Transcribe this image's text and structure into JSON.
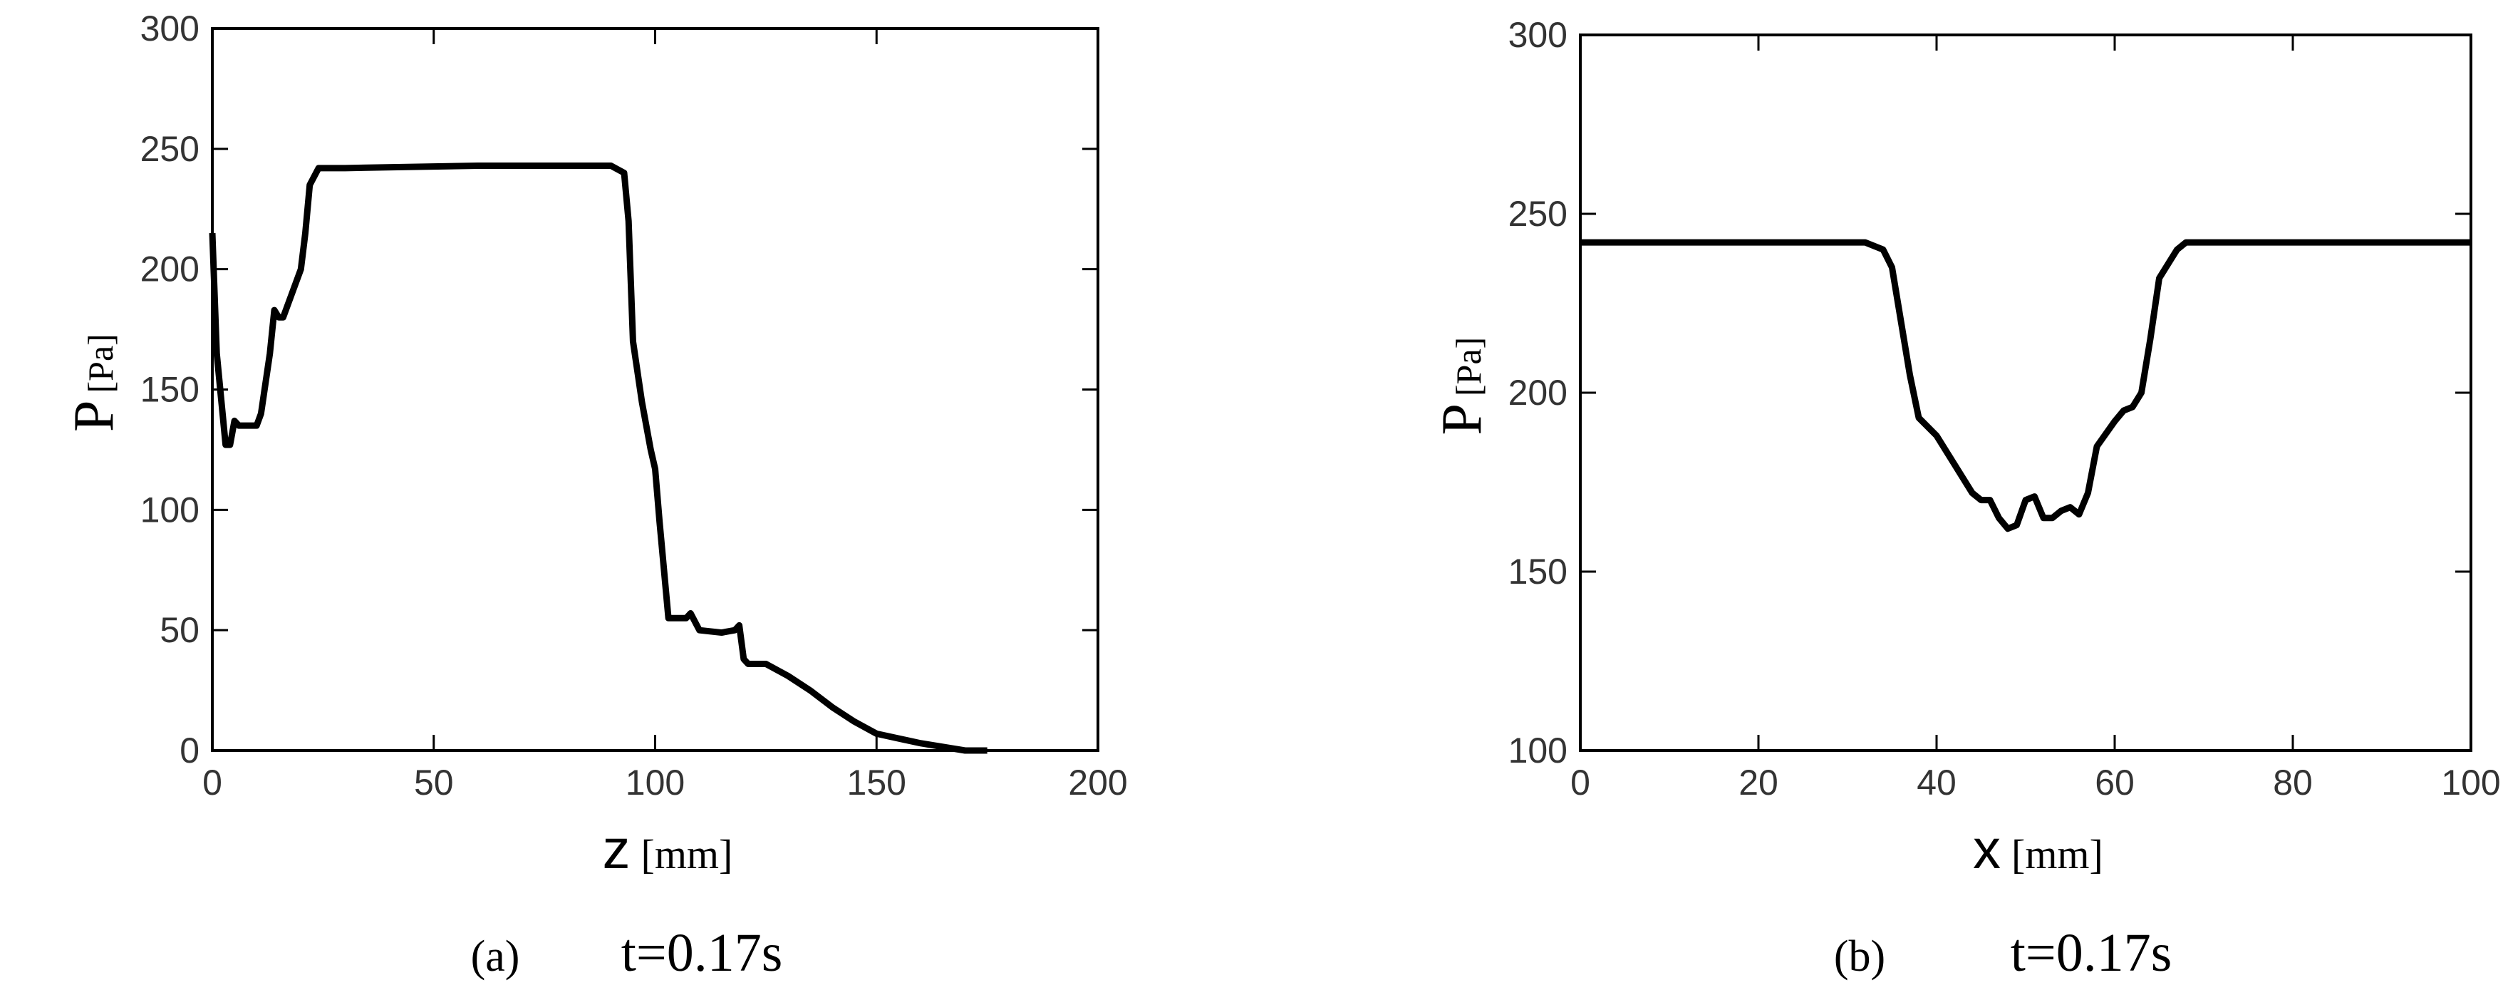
{
  "chart_data": [
    {
      "type": "line",
      "ylabel": "P",
      "ylabel_unit": "[Pa]",
      "xlabel": "z",
      "xlabel_unit": "[mm]",
      "caption_label": "(a)",
      "caption": "t=0.17s",
      "xlim": [
        0,
        200
      ],
      "xticks": [
        0,
        50,
        100,
        150,
        200
      ],
      "ylim": [
        0,
        300
      ],
      "yticks": [
        0,
        50,
        100,
        150,
        200,
        250,
        300
      ],
      "series": [
        {
          "color": "#000000",
          "x": [
            0,
            1,
            3,
            4,
            5,
            6,
            10,
            11,
            13,
            14,
            15,
            16,
            18,
            20,
            21,
            22,
            24,
            30,
            60,
            90,
            93,
            94,
            95,
            97,
            99,
            100,
            101,
            102,
            103,
            107,
            108,
            110,
            115,
            118,
            119,
            120,
            121,
            125,
            130,
            135,
            140,
            145,
            150,
            160,
            170,
            175
          ],
          "values": [
            215,
            165,
            127,
            127,
            137,
            135,
            135,
            140,
            165,
            183,
            180,
            180,
            190,
            200,
            215,
            235,
            242,
            242,
            243,
            243,
            240,
            220,
            170,
            145,
            125,
            117,
            95,
            75,
            55,
            55,
            57,
            50,
            49,
            50,
            52,
            38,
            36,
            36,
            31,
            25,
            18,
            12,
            7,
            3,
            0,
            0
          ]
        }
      ]
    },
    {
      "type": "line",
      "ylabel": "P",
      "ylabel_unit": "[Pa]",
      "xlabel": "x",
      "xlabel_unit": "[mm]",
      "caption_label": "(b)",
      "caption": "t=0.17s",
      "xlim": [
        0,
        100
      ],
      "xticks": [
        0,
        20,
        40,
        60,
        80,
        100
      ],
      "ylim": [
        100,
        300
      ],
      "yticks": [
        100,
        150,
        200,
        250,
        300
      ],
      "series": [
        {
          "color": "#000000",
          "x": [
            0,
            32,
            34,
            35,
            36,
            37,
            38,
            40,
            42,
            44,
            45,
            46,
            47,
            48,
            49,
            50,
            51,
            52,
            53,
            54,
            55,
            56,
            57,
            58,
            60,
            61,
            62,
            63,
            64,
            65,
            67,
            68,
            100
          ],
          "values": [
            242,
            242,
            240,
            235,
            220,
            205,
            193,
            188,
            180,
            172,
            170,
            170,
            165,
            162,
            163,
            170,
            171,
            165,
            165,
            167,
            168,
            166,
            172,
            185,
            192,
            195,
            196,
            200,
            215,
            232,
            240,
            242,
            242
          ]
        }
      ]
    }
  ]
}
